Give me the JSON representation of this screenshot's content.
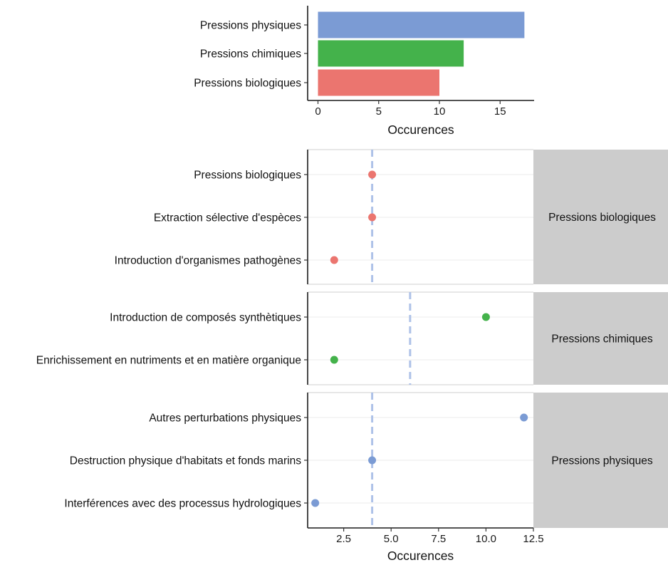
{
  "chart_data": [
    {
      "type": "bar",
      "orientation": "horizontal",
      "categories": [
        "Pressions physiques",
        "Pressions chimiques",
        "Pressions biologiques"
      ],
      "values": [
        17,
        12,
        10
      ],
      "colors": [
        "#7b9bd4",
        "#44b24b",
        "#eb756f"
      ],
      "xlabel": "Occurences",
      "xlim": [
        -0.85,
        17.8
      ],
      "xticks": [
        0,
        5,
        10,
        15
      ],
      "grid": false
    },
    {
      "type": "scatter",
      "xlabel": "Occurences",
      "xlim": [
        0.6,
        12.5
      ],
      "xticks": [
        2.5,
        5.0,
        7.5,
        10.0,
        12.5
      ],
      "xtick_labels": [
        "2.5",
        "5.0",
        "7.5",
        "10.0",
        "12.5"
      ],
      "grid": true,
      "facets": [
        {
          "strip": "Pressions biologiques",
          "color": "#eb756f",
          "mean_line": 4,
          "categories": [
            "Pressions biologiques",
            "Extraction sélective d'espèces",
            "Introduction d'organismes pathogènes"
          ],
          "values": [
            4,
            4,
            2
          ]
        },
        {
          "strip": "Pressions chimiques",
          "color": "#44b24b",
          "mean_line": 6,
          "categories": [
            "Introduction de composés synthètiques",
            "Enrichissement en nutriments et en matière organique"
          ],
          "values": [
            10,
            2
          ]
        },
        {
          "strip": "Pressions physiques",
          "color": "#7b9bd4",
          "mean_line": 4,
          "categories": [
            "Autres perturbations physiques",
            "Destruction physique d'habitats et fonds marins",
            "Interférences avec des processus hydrologiques"
          ],
          "values": [
            12,
            4,
            1
          ]
        }
      ]
    }
  ]
}
